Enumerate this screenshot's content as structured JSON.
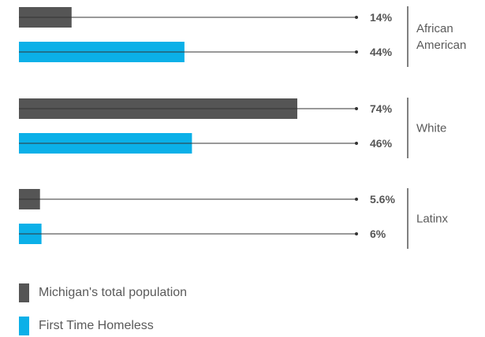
{
  "chart_data": {
    "type": "bar",
    "orientation": "horizontal",
    "xlim": [
      0,
      100
    ],
    "categories": [
      "African American",
      "White",
      "Latinx"
    ],
    "category_lines": [
      [
        "African",
        "American"
      ],
      [
        "White"
      ],
      [
        "Latinx"
      ]
    ],
    "series": [
      {
        "name": "Michigan's total population",
        "color": "#555555",
        "values": [
          14,
          74,
          5.6
        ],
        "labels": [
          "14%",
          "74%",
          "5.6%"
        ]
      },
      {
        "name": "First Time Homeless",
        "color": "#0bb0e8",
        "values": [
          44,
          46,
          6
        ],
        "labels": [
          "44%",
          "46%",
          "6%"
        ]
      }
    ],
    "legend_placement": "bottom-left",
    "grid": false
  }
}
